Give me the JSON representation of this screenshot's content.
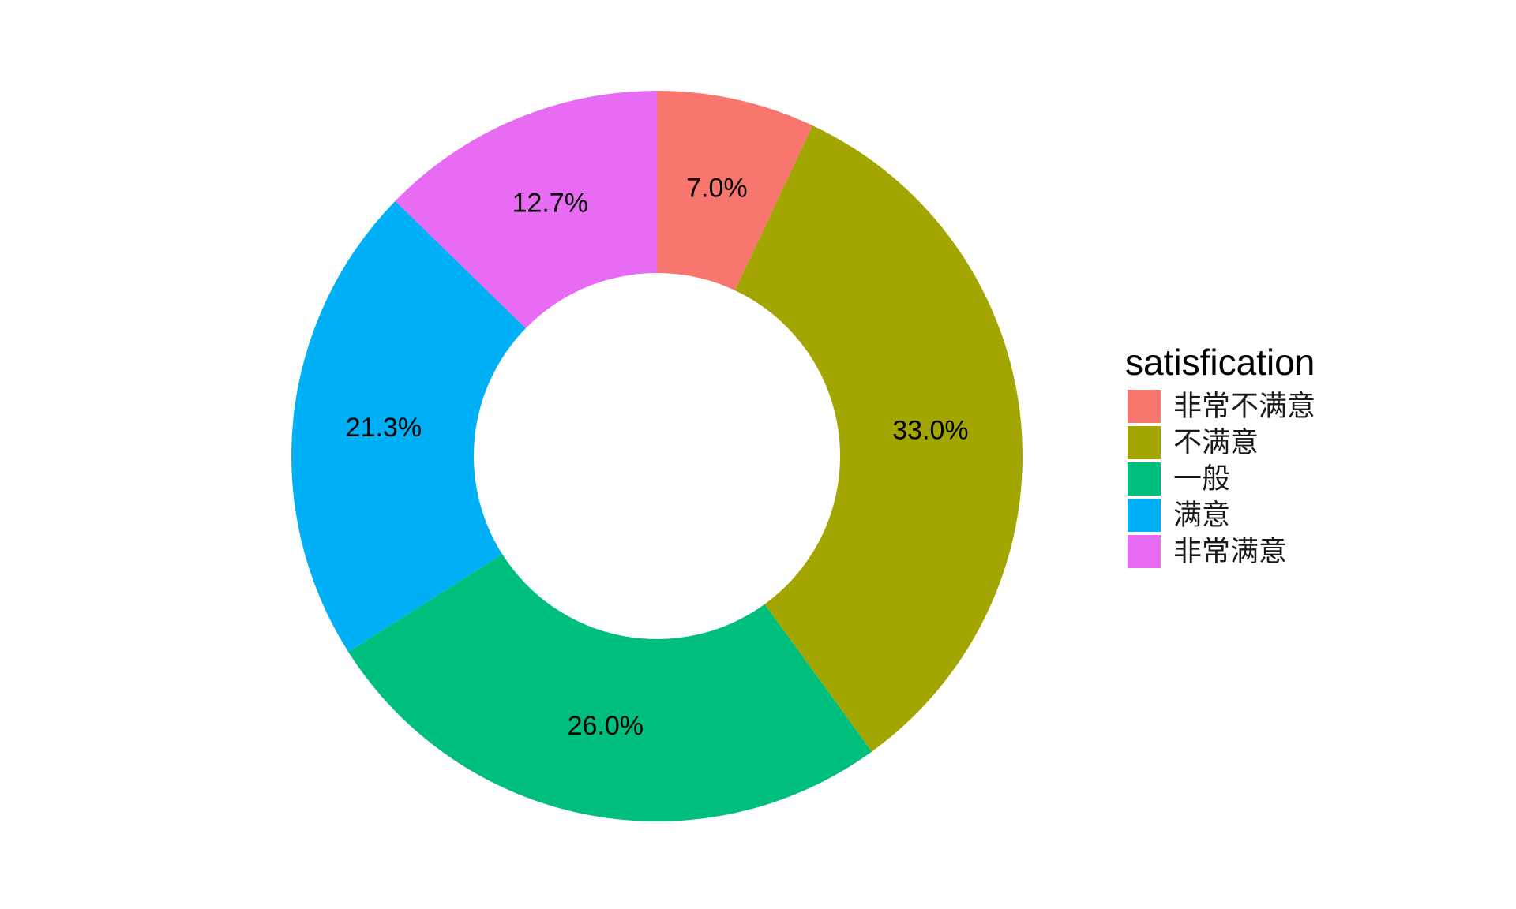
{
  "chart_data": {
    "type": "pie",
    "variant": "donut",
    "legend_title": "satisfication",
    "legend_position": "right",
    "categories": [
      "非常不满意",
      "不满意",
      "一般",
      "满意",
      "非常满意"
    ],
    "values": [
      7.0,
      33.0,
      26.0,
      21.3,
      12.7
    ],
    "value_labels": [
      "7.0%",
      "33.0%",
      "26.0%",
      "21.3%",
      "12.7%"
    ],
    "colors": [
      "#F8766D",
      "#A3A500",
      "#00BF7D",
      "#00B0F6",
      "#E76BF3"
    ],
    "grid": false
  }
}
